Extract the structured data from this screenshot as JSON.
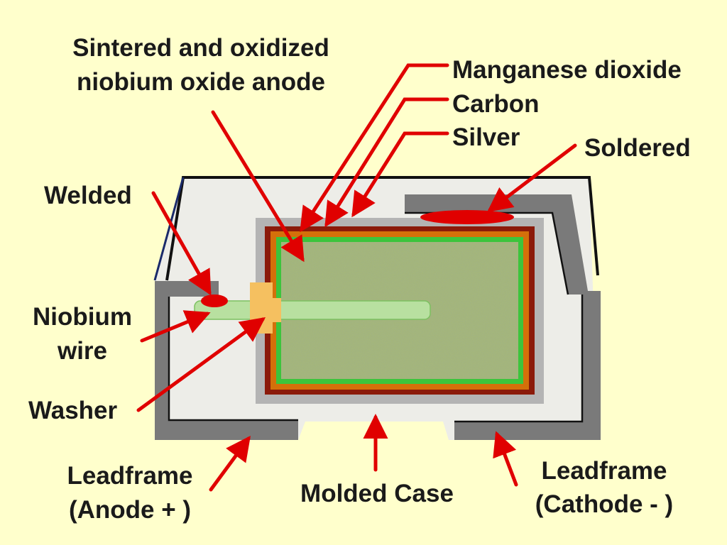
{
  "labels": {
    "anode_line1": "Sintered and oxidized",
    "anode_line2": "niobium oxide anode",
    "manganese": "Manganese dioxide",
    "carbon": "Carbon",
    "silver": "Silver",
    "soldered": "Soldered",
    "welded": "Welded",
    "wire_line1": "Niobium",
    "wire_line2": "wire",
    "washer": "Washer",
    "lead_anode_line1": "Leadframe",
    "lead_anode_line2": "(Anode + )",
    "molded_case": "Molded Case",
    "lead_cathode_line1": "Leadframe",
    "lead_cathode_line2": "(Cathode - )"
  },
  "colors": {
    "background": "#FFFFCC",
    "case_fill": "#EDEDE8",
    "case_outline": "#111111",
    "leadframe": "#7A7A7A",
    "silver_layer": "#B4B4B4",
    "carbon_layer": "#8B1A0A",
    "manganese_layer": "#D4700A",
    "anode_border": "#3CC43C",
    "anode_fill": "#A4B67A",
    "wire": "#B8E0A0",
    "washer": "#F5C060",
    "solder_weld": "#E00000",
    "arrow": "#E00000"
  }
}
